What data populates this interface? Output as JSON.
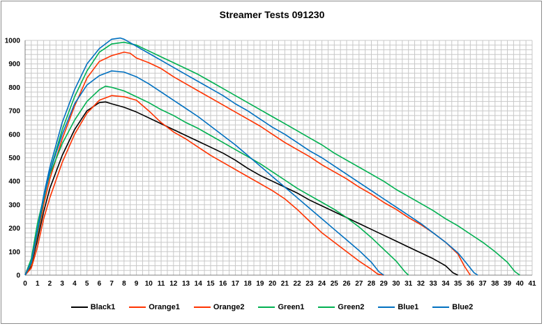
{
  "chart_data": {
    "type": "line",
    "title": "Streamer Tests 091230",
    "xlabel": "",
    "ylabel": "",
    "xlim": [
      0,
      41
    ],
    "ylim": [
      0,
      1000
    ],
    "xticks": [
      0,
      1,
      2,
      3,
      4,
      5,
      6,
      7,
      8,
      9,
      10,
      11,
      12,
      13,
      14,
      15,
      16,
      17,
      18,
      19,
      20,
      21,
      22,
      23,
      24,
      25,
      26,
      27,
      28,
      29,
      30,
      31,
      32,
      33,
      34,
      35,
      36,
      37,
      38,
      39,
      40,
      41
    ],
    "yticks": [
      0,
      100,
      200,
      300,
      400,
      500,
      600,
      700,
      800,
      900,
      1000
    ],
    "grid": true,
    "legend": "bottom",
    "series": [
      {
        "name": "Black1",
        "color": "#000000",
        "points": [
          [
            0,
            0
          ],
          [
            0.5,
            40
          ],
          [
            1,
            150
          ],
          [
            1.5,
            270
          ],
          [
            2,
            370
          ],
          [
            3,
            510
          ],
          [
            4,
            620
          ],
          [
            5,
            700
          ],
          [
            6,
            735
          ],
          [
            6.5,
            738
          ],
          [
            7,
            730
          ],
          [
            8,
            715
          ],
          [
            9,
            695
          ],
          [
            10,
            670
          ],
          [
            11,
            645
          ],
          [
            12,
            620
          ],
          [
            13,
            595
          ],
          [
            14,
            570
          ],
          [
            15,
            545
          ],
          [
            16,
            520
          ],
          [
            17,
            490
          ],
          [
            18,
            455
          ],
          [
            19,
            425
          ],
          [
            20,
            400
          ],
          [
            21,
            375
          ],
          [
            22,
            350
          ],
          [
            23,
            320
          ],
          [
            24,
            295
          ],
          [
            25,
            270
          ],
          [
            26,
            245
          ],
          [
            27,
            220
          ],
          [
            28,
            195
          ],
          [
            29,
            170
          ],
          [
            30,
            145
          ],
          [
            31,
            120
          ],
          [
            32,
            95
          ],
          [
            33,
            70
          ],
          [
            34,
            40
          ],
          [
            34.6,
            10
          ],
          [
            35,
            0
          ]
        ]
      },
      {
        "name": "Orange1",
        "color": "#ff3300",
        "points": [
          [
            0,
            0
          ],
          [
            0.5,
            30
          ],
          [
            1,
            120
          ],
          [
            1.5,
            240
          ],
          [
            2,
            330
          ],
          [
            3,
            480
          ],
          [
            4,
            600
          ],
          [
            5,
            690
          ],
          [
            6,
            745
          ],
          [
            7,
            765
          ],
          [
            8,
            760
          ],
          [
            9,
            745
          ],
          [
            10,
            700
          ],
          [
            11,
            650
          ],
          [
            12,
            610
          ],
          [
            13,
            580
          ],
          [
            14,
            545
          ],
          [
            15,
            510
          ],
          [
            16,
            480
          ],
          [
            17,
            450
          ],
          [
            18,
            420
          ],
          [
            19,
            390
          ],
          [
            20,
            360
          ],
          [
            21,
            325
          ],
          [
            22,
            280
          ],
          [
            23,
            230
          ],
          [
            24,
            180
          ],
          [
            25,
            140
          ],
          [
            26,
            100
          ],
          [
            27,
            60
          ],
          [
            28,
            25
          ],
          [
            28.5,
            5
          ],
          [
            29,
            0
          ]
        ]
      },
      {
        "name": "Orange2",
        "color": "#ff3300",
        "points": [
          [
            0,
            0
          ],
          [
            0.5,
            45
          ],
          [
            1,
            170
          ],
          [
            1.5,
            300
          ],
          [
            2,
            410
          ],
          [
            3,
            580
          ],
          [
            4,
            720
          ],
          [
            5,
            840
          ],
          [
            6,
            910
          ],
          [
            7,
            935
          ],
          [
            8,
            950
          ],
          [
            8.5,
            945
          ],
          [
            9,
            925
          ],
          [
            10,
            905
          ],
          [
            11,
            880
          ],
          [
            12,
            845
          ],
          [
            13,
            815
          ],
          [
            14,
            785
          ],
          [
            15,
            755
          ],
          [
            16,
            725
          ],
          [
            17,
            695
          ],
          [
            18,
            665
          ],
          [
            19,
            635
          ],
          [
            20,
            600
          ],
          [
            21,
            565
          ],
          [
            22,
            535
          ],
          [
            23,
            505
          ],
          [
            24,
            470
          ],
          [
            25,
            440
          ],
          [
            26,
            410
          ],
          [
            27,
            375
          ],
          [
            28,
            345
          ],
          [
            29,
            310
          ],
          [
            30,
            280
          ],
          [
            31,
            245
          ],
          [
            32,
            215
          ],
          [
            33,
            180
          ],
          [
            34,
            140
          ],
          [
            35,
            90
          ],
          [
            35.5,
            40
          ],
          [
            36,
            0
          ]
        ]
      },
      {
        "name": "Green1",
        "color": "#00b050",
        "points": [
          [
            0,
            0
          ],
          [
            0.5,
            70
          ],
          [
            1,
            220
          ],
          [
            1.5,
            330
          ],
          [
            2,
            430
          ],
          [
            3,
            560
          ],
          [
            4,
            660
          ],
          [
            5,
            740
          ],
          [
            6,
            790
          ],
          [
            6.5,
            805
          ],
          [
            7,
            800
          ],
          [
            8,
            785
          ],
          [
            9,
            760
          ],
          [
            10,
            735
          ],
          [
            11,
            705
          ],
          [
            12,
            680
          ],
          [
            13,
            650
          ],
          [
            14,
            625
          ],
          [
            15,
            595
          ],
          [
            16,
            565
          ],
          [
            17,
            535
          ],
          [
            18,
            505
          ],
          [
            19,
            475
          ],
          [
            20,
            440
          ],
          [
            21,
            405
          ],
          [
            22,
            370
          ],
          [
            23,
            340
          ],
          [
            24,
            310
          ],
          [
            25,
            280
          ],
          [
            26,
            245
          ],
          [
            27,
            205
          ],
          [
            28,
            160
          ],
          [
            29,
            110
          ],
          [
            30,
            60
          ],
          [
            30.7,
            15
          ],
          [
            31,
            0
          ]
        ]
      },
      {
        "name": "Green2",
        "color": "#00b050",
        "points": [
          [
            0,
            0
          ],
          [
            0.5,
            50
          ],
          [
            1,
            180
          ],
          [
            1.5,
            320
          ],
          [
            2,
            440
          ],
          [
            3,
            620
          ],
          [
            4,
            760
          ],
          [
            5,
            870
          ],
          [
            6,
            950
          ],
          [
            7,
            985
          ],
          [
            8,
            992
          ],
          [
            9,
            980
          ],
          [
            10,
            955
          ],
          [
            11,
            930
          ],
          [
            12,
            905
          ],
          [
            13,
            880
          ],
          [
            14,
            855
          ],
          [
            15,
            825
          ],
          [
            16,
            795
          ],
          [
            17,
            765
          ],
          [
            18,
            735
          ],
          [
            19,
            705
          ],
          [
            20,
            675
          ],
          [
            21,
            645
          ],
          [
            22,
            615
          ],
          [
            23,
            585
          ],
          [
            24,
            555
          ],
          [
            25,
            520
          ],
          [
            26,
            490
          ],
          [
            27,
            460
          ],
          [
            28,
            430
          ],
          [
            29,
            400
          ],
          [
            30,
            365
          ],
          [
            31,
            335
          ],
          [
            32,
            305
          ],
          [
            33,
            275
          ],
          [
            34,
            240
          ],
          [
            35,
            210
          ],
          [
            36,
            175
          ],
          [
            37,
            140
          ],
          [
            38,
            100
          ],
          [
            39,
            55
          ],
          [
            39.6,
            15
          ],
          [
            40,
            0
          ]
        ]
      },
      {
        "name": "Blue1",
        "color": "#0070c0",
        "points": [
          [
            0,
            0
          ],
          [
            0.5,
            55
          ],
          [
            1,
            190
          ],
          [
            1.5,
            330
          ],
          [
            2,
            440
          ],
          [
            3,
            600
          ],
          [
            4,
            730
          ],
          [
            5,
            810
          ],
          [
            6,
            850
          ],
          [
            7,
            870
          ],
          [
            8,
            865
          ],
          [
            9,
            845
          ],
          [
            10,
            815
          ],
          [
            11,
            780
          ],
          [
            12,
            745
          ],
          [
            13,
            710
          ],
          [
            14,
            675
          ],
          [
            15,
            635
          ],
          [
            16,
            595
          ],
          [
            17,
            555
          ],
          [
            18,
            510
          ],
          [
            19,
            465
          ],
          [
            20,
            420
          ],
          [
            21,
            375
          ],
          [
            22,
            330
          ],
          [
            23,
            285
          ],
          [
            24,
            240
          ],
          [
            25,
            195
          ],
          [
            26,
            150
          ],
          [
            27,
            105
          ],
          [
            28,
            55
          ],
          [
            28.6,
            15
          ],
          [
            29,
            0
          ]
        ]
      },
      {
        "name": "Blue2",
        "color": "#0070c0",
        "points": [
          [
            0,
            0
          ],
          [
            0.5,
            55
          ],
          [
            1,
            190
          ],
          [
            1.5,
            340
          ],
          [
            2,
            460
          ],
          [
            3,
            650
          ],
          [
            4,
            790
          ],
          [
            5,
            900
          ],
          [
            6,
            965
          ],
          [
            7,
            1005
          ],
          [
            7.7,
            1010
          ],
          [
            8,
            1005
          ],
          [
            9,
            975
          ],
          [
            10,
            945
          ],
          [
            11,
            915
          ],
          [
            12,
            885
          ],
          [
            13,
            855
          ],
          [
            14,
            825
          ],
          [
            15,
            795
          ],
          [
            16,
            765
          ],
          [
            17,
            730
          ],
          [
            18,
            700
          ],
          [
            19,
            665
          ],
          [
            20,
            630
          ],
          [
            21,
            600
          ],
          [
            22,
            565
          ],
          [
            23,
            530
          ],
          [
            24,
            500
          ],
          [
            25,
            465
          ],
          [
            26,
            430
          ],
          [
            27,
            395
          ],
          [
            28,
            360
          ],
          [
            29,
            325
          ],
          [
            30,
            290
          ],
          [
            31,
            255
          ],
          [
            32,
            220
          ],
          [
            33,
            180
          ],
          [
            34,
            140
          ],
          [
            35,
            95
          ],
          [
            35.7,
            50
          ],
          [
            36.3,
            10
          ],
          [
            36.6,
            0
          ]
        ]
      }
    ]
  }
}
